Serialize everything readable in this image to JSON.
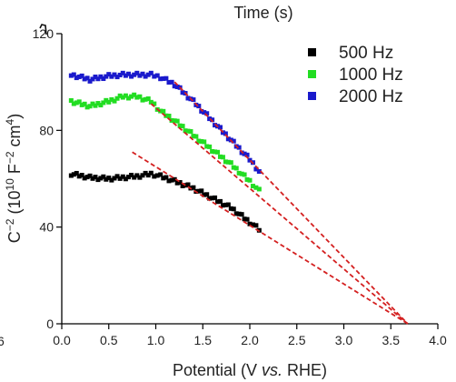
{
  "header": {
    "top_axis_title": "Time (s)",
    "left_partial_label": "6"
  },
  "chart_data": {
    "type": "scatter",
    "xlabel_parts": [
      "Potential (V ",
      "vs.",
      " RHE)"
    ],
    "ylabel_parts": [
      "C",
      "−2",
      " (10",
      "10",
      " F",
      "−2",
      " cm",
      "4",
      ")"
    ],
    "xlim": [
      0.0,
      4.0
    ],
    "ylim": [
      0,
      120
    ],
    "x_ticks": [
      0.0,
      0.5,
      1.0,
      1.5,
      2.0,
      2.5,
      3.0,
      3.5,
      4.0
    ],
    "x_tick_labels": [
      "0.0",
      "0.5",
      "1.0",
      "1.5",
      "2.0",
      "2.5",
      "3.0",
      "3.5",
      "4.0"
    ],
    "y_ticks": [
      0,
      40,
      80,
      120
    ],
    "y_tick_labels": [
      "0",
      "40",
      "80",
      "120"
    ],
    "legend_position": "top-right",
    "series": [
      {
        "name": "500 Hz",
        "color": "#000000",
        "points": [
          [
            0.1,
            62
          ],
          [
            0.3,
            60.5
          ],
          [
            0.5,
            60
          ],
          [
            0.65,
            60.5
          ],
          [
            0.8,
            61
          ],
          [
            0.95,
            62
          ],
          [
            1.05,
            61
          ],
          [
            1.2,
            59
          ],
          [
            1.4,
            56
          ],
          [
            1.6,
            52
          ],
          [
            1.8,
            48
          ],
          [
            2.0,
            42
          ],
          [
            2.1,
            39
          ]
        ]
      },
      {
        "name": "1000 Hz",
        "color": "#22dd22",
        "points": [
          [
            0.1,
            92
          ],
          [
            0.3,
            90
          ],
          [
            0.5,
            92
          ],
          [
            0.65,
            94
          ],
          [
            0.8,
            94
          ],
          [
            0.95,
            92
          ],
          [
            1.05,
            88
          ],
          [
            1.2,
            84
          ],
          [
            1.4,
            78
          ],
          [
            1.6,
            72
          ],
          [
            1.8,
            66
          ],
          [
            2.0,
            59
          ],
          [
            2.1,
            55
          ]
        ]
      },
      {
        "name": "2000 Hz",
        "color": "#1a1acc",
        "points": [
          [
            0.1,
            103
          ],
          [
            0.3,
            101
          ],
          [
            0.5,
            102.5
          ],
          [
            0.65,
            103
          ],
          [
            0.8,
            103
          ],
          [
            0.95,
            103
          ],
          [
            1.05,
            102
          ],
          [
            1.2,
            99
          ],
          [
            1.4,
            92
          ],
          [
            1.6,
            84
          ],
          [
            1.8,
            76
          ],
          [
            2.0,
            68
          ],
          [
            2.1,
            63
          ]
        ]
      }
    ],
    "fit_lines": [
      {
        "color": "#d42020",
        "from": [
          0.75,
          71
        ],
        "to": [
          3.68,
          0
        ]
      },
      {
        "color": "#d42020",
        "from": [
          0.95,
          91
        ],
        "to": [
          3.68,
          0
        ]
      },
      {
        "color": "#d42020",
        "from": [
          1.2,
          100
        ],
        "to": [
          3.68,
          0
        ]
      }
    ]
  }
}
